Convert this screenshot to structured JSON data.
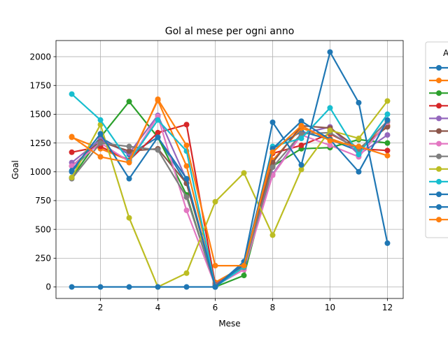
{
  "chart_data": {
    "type": "line",
    "title": "Gol al mese per ogni anno",
    "xlabel": "Mese",
    "ylabel": "Goal",
    "xlim": [
      0.45,
      12.55
    ],
    "ylim": [
      -100,
      2140
    ],
    "xticks": [
      2,
      4,
      6,
      8,
      10,
      12
    ],
    "yticks": [
      0,
      250,
      500,
      750,
      1000,
      1250,
      1500,
      1750,
      2000
    ],
    "grid": true,
    "legend_position": "outside-right",
    "legend_title": "A",
    "x": [
      1,
      2,
      3,
      4,
      5,
      6,
      7,
      8,
      9,
      10,
      11,
      12
    ],
    "series": [
      {
        "color": "#1f77b4",
        "values": [
          1000,
          1300,
          1150,
          1300,
          900,
          30,
          180,
          1200,
          1350,
          1280,
          1180,
          1400
        ]
      },
      {
        "color": "#ff7f0e",
        "values": [
          1300,
          1200,
          1100,
          1620,
          1050,
          40,
          180,
          1100,
          1380,
          1290,
          1200,
          1400
        ]
      },
      {
        "color": "#2ca02c",
        "values": [
          950,
          1300,
          1610,
          1300,
          800,
          0,
          100,
          1050,
          1200,
          1210,
          1280,
          1250
        ]
      },
      {
        "color": "#d62728",
        "values": [
          1170,
          1220,
          1100,
          1340,
          1410,
          20,
          180,
          1160,
          1230,
          1330,
          1200,
          1185
        ]
      },
      {
        "color": "#9467bd",
        "values": [
          1080,
          1280,
          1160,
          1490,
          930,
          20,
          170,
          980,
          1330,
          1390,
          1150,
          1320
        ]
      },
      {
        "color": "#8c564b",
        "values": [
          1050,
          1260,
          1180,
          1200,
          900,
          15,
          170,
          1080,
          1400,
          1380,
          1200,
          1390
        ]
      },
      {
        "color": "#e377c2",
        "values": [
          1050,
          1250,
          1090,
          1480,
          665,
          10,
          150,
          970,
          1320,
          1230,
          1130,
          1430
        ]
      },
      {
        "color": "#7f7f7f",
        "values": [
          940,
          1250,
          1220,
          1190,
          780,
          10,
          170,
          1040,
          1330,
          1340,
          1190,
          1440
        ]
      },
      {
        "color": "#bcbd22",
        "values": [
          950,
          1410,
          600,
          0,
          120,
          740,
          990,
          450,
          1020,
          1360,
          1290,
          1615
        ]
      },
      {
        "color": "#17becf",
        "values": [
          1675,
          1450,
          1090,
          1450,
          1180,
          0,
          175,
          1220,
          1290,
          1555,
          1150,
          1500
        ]
      },
      {
        "color": "#1f77b4",
        "values": [
          0,
          0,
          0,
          0,
          0,
          0,
          220,
          1430,
          1060,
          2040,
          1600,
          380
        ]
      },
      {
        "color": "#1f77b4",
        "values": [
          1010,
          1330,
          940,
          1300,
          940,
          0,
          200,
          1200,
          1440,
          1280,
          1000,
          1450
        ]
      },
      {
        "color": "#ff7f0e",
        "values": [
          1305,
          1130,
          1080,
          1630,
          1230,
          185,
          185,
          1170,
          1400,
          1270,
          1220,
          1140
        ]
      }
    ]
  }
}
